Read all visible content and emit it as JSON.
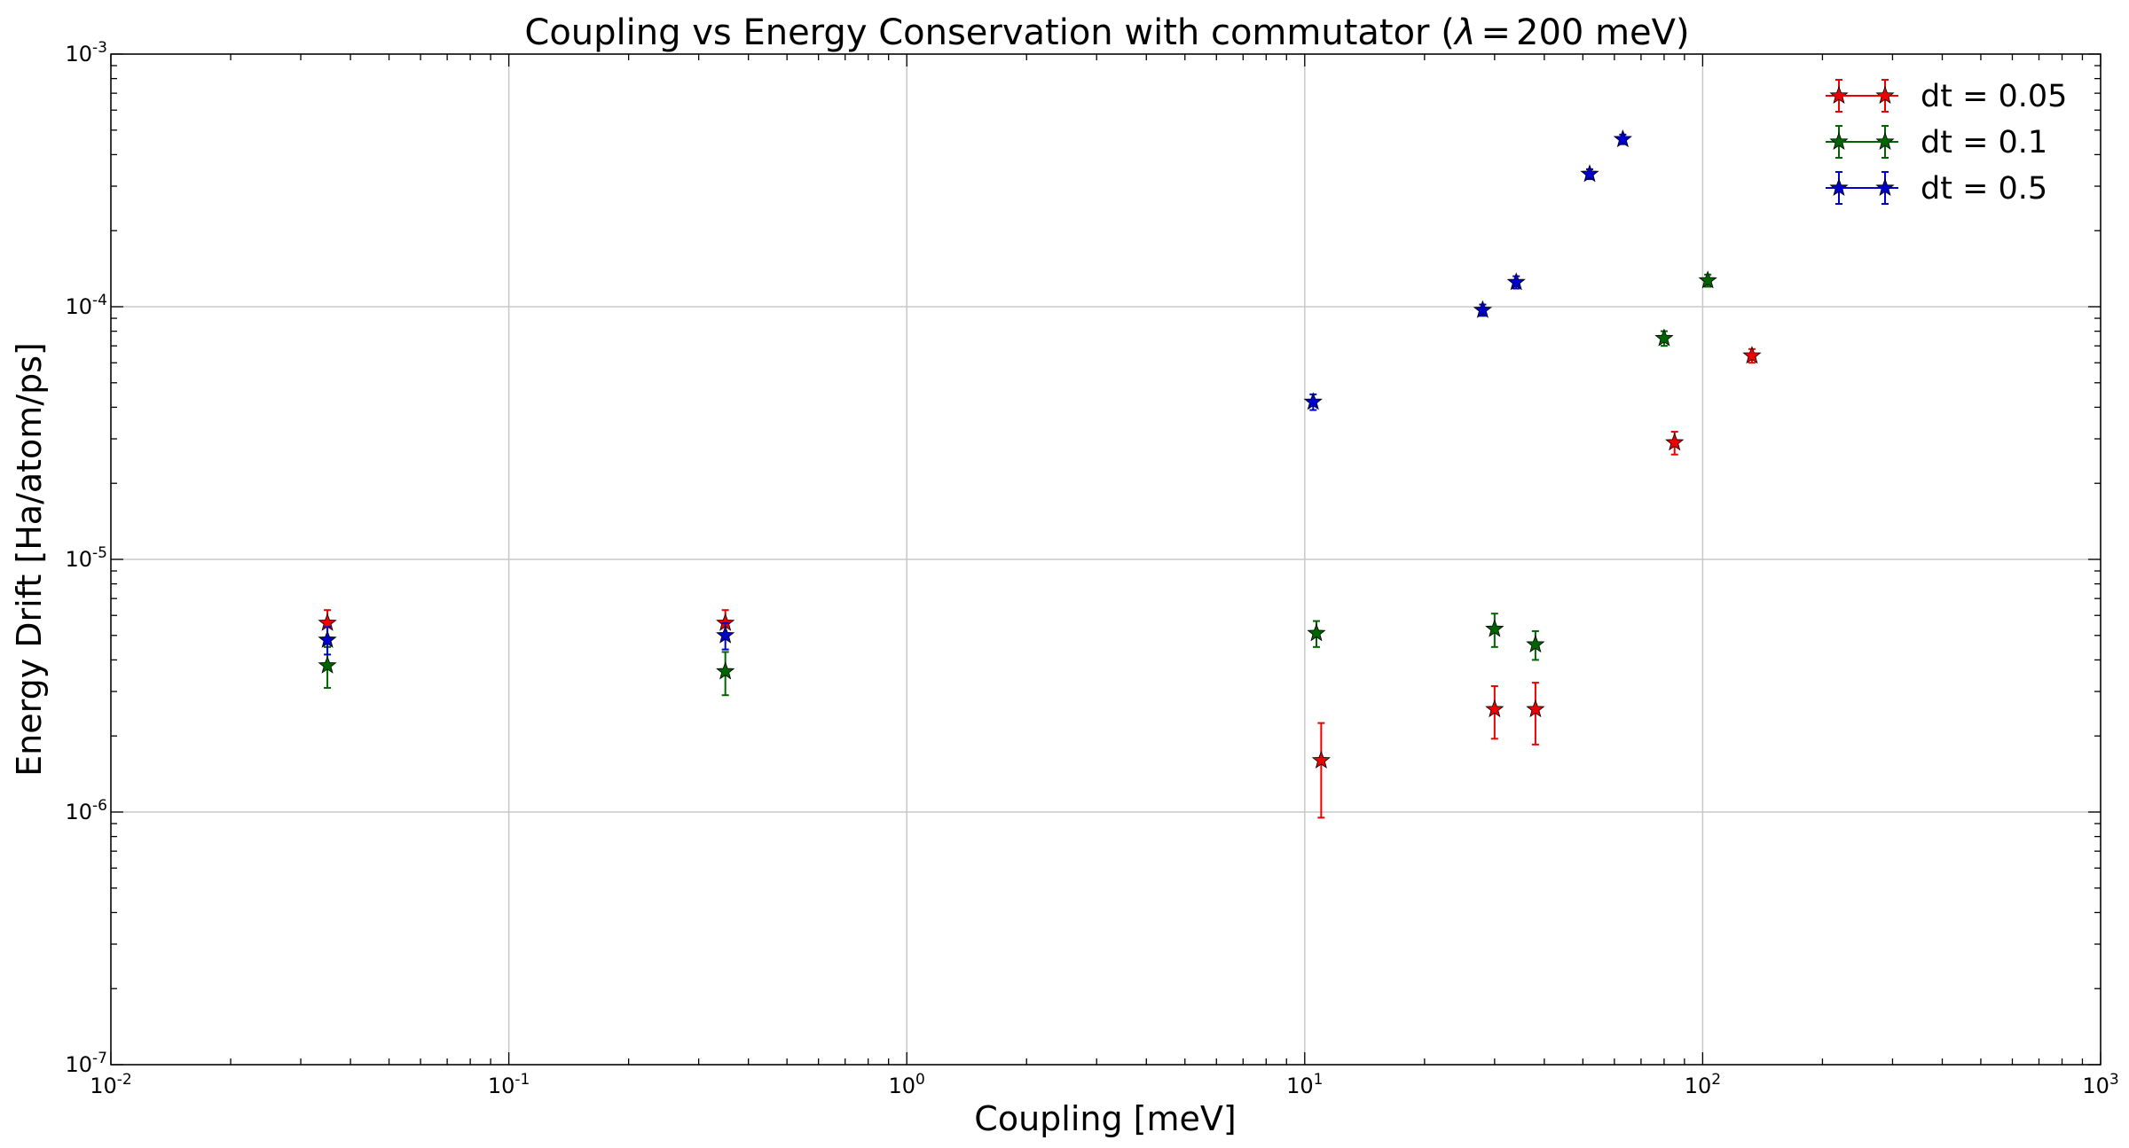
{
  "chart_data": {
    "type": "scatter",
    "title": "Coupling vs Energy Conservation with commutator (λ = 200 meV)",
    "title_parts": {
      "prefix": "Coupling vs Energy Conservation with commutator (",
      "symbol": "λ",
      "equals": "=",
      "suffix": "200 meV)"
    },
    "xlabel": "Coupling [meV]",
    "ylabel": "Energy Drift [Ha/atom/ps]",
    "xscale": "log",
    "yscale": "log",
    "xlim": [
      0.01,
      1000
    ],
    "ylim": [
      1e-07,
      0.001
    ],
    "grid": true,
    "legend_position": "top-right",
    "marker": "star-with-errorbars",
    "x_ticks": [
      {
        "value": 0.01,
        "base": "10",
        "exp": "-2"
      },
      {
        "value": 0.1,
        "base": "10",
        "exp": "-1"
      },
      {
        "value": 1,
        "base": "10",
        "exp": "0"
      },
      {
        "value": 10,
        "base": "10",
        "exp": "1"
      },
      {
        "value": 100,
        "base": "10",
        "exp": "2"
      },
      {
        "value": 1000,
        "base": "10",
        "exp": "3"
      }
    ],
    "y_ticks": [
      {
        "value": 1e-07,
        "base": "10",
        "exp": "-7"
      },
      {
        "value": 1e-06,
        "base": "10",
        "exp": "-6"
      },
      {
        "value": 1e-05,
        "base": "10",
        "exp": "-5"
      },
      {
        "value": 0.0001,
        "base": "10",
        "exp": "-4"
      },
      {
        "value": 0.001,
        "base": "10",
        "exp": "-3"
      }
    ],
    "series": [
      {
        "name": "dt = 0.05",
        "color": "#ee0000",
        "points": [
          {
            "x": 0.035,
            "y": 5.6e-06,
            "err": 7e-07
          },
          {
            "x": 0.35,
            "y": 5.6e-06,
            "err": 7e-07
          },
          {
            "x": 11.0,
            "y": 1.6e-06,
            "err": 6.5e-07
          },
          {
            "x": 30.0,
            "y": 2.55e-06,
            "err": 6e-07
          },
          {
            "x": 38.0,
            "y": 2.55e-06,
            "err": 7e-07
          },
          {
            "x": 85.0,
            "y": 2.9e-05,
            "err": 3e-06
          },
          {
            "x": 133.0,
            "y": 6.4e-05,
            "err": 4e-06
          }
        ]
      },
      {
        "name": "dt = 0.1",
        "color": "#006400",
        "points": [
          {
            "x": 0.035,
            "y": 3.8e-06,
            "err": 7e-07
          },
          {
            "x": 0.35,
            "y": 3.6e-06,
            "err": 7e-07
          },
          {
            "x": 10.7,
            "y": 5.1e-06,
            "err": 6e-07
          },
          {
            "x": 30.0,
            "y": 5.3e-06,
            "err": 8e-07
          },
          {
            "x": 38.0,
            "y": 4.6e-06,
            "err": 6e-07
          },
          {
            "x": 80.0,
            "y": 7.5e-05,
            "err": 5e-06
          },
          {
            "x": 103.0,
            "y": 0.000127,
            "err": 7e-06
          }
        ]
      },
      {
        "name": "dt = 0.5",
        "color": "#0000cc",
        "points": [
          {
            "x": 0.035,
            "y": 4.8e-06,
            "err": 6e-07
          },
          {
            "x": 0.35,
            "y": 5e-06,
            "err": 6e-07
          },
          {
            "x": 10.5,
            "y": 4.2e-05,
            "err": 3e-06
          },
          {
            "x": 28.0,
            "y": 9.7e-05,
            "err": 5e-06
          },
          {
            "x": 34.0,
            "y": 0.000125,
            "err": 7e-06
          },
          {
            "x": 52.0,
            "y": 0.000335,
            "err": 1.5e-05
          },
          {
            "x": 63.0,
            "y": 0.00046,
            "err": 2e-05
          }
        ]
      }
    ]
  }
}
